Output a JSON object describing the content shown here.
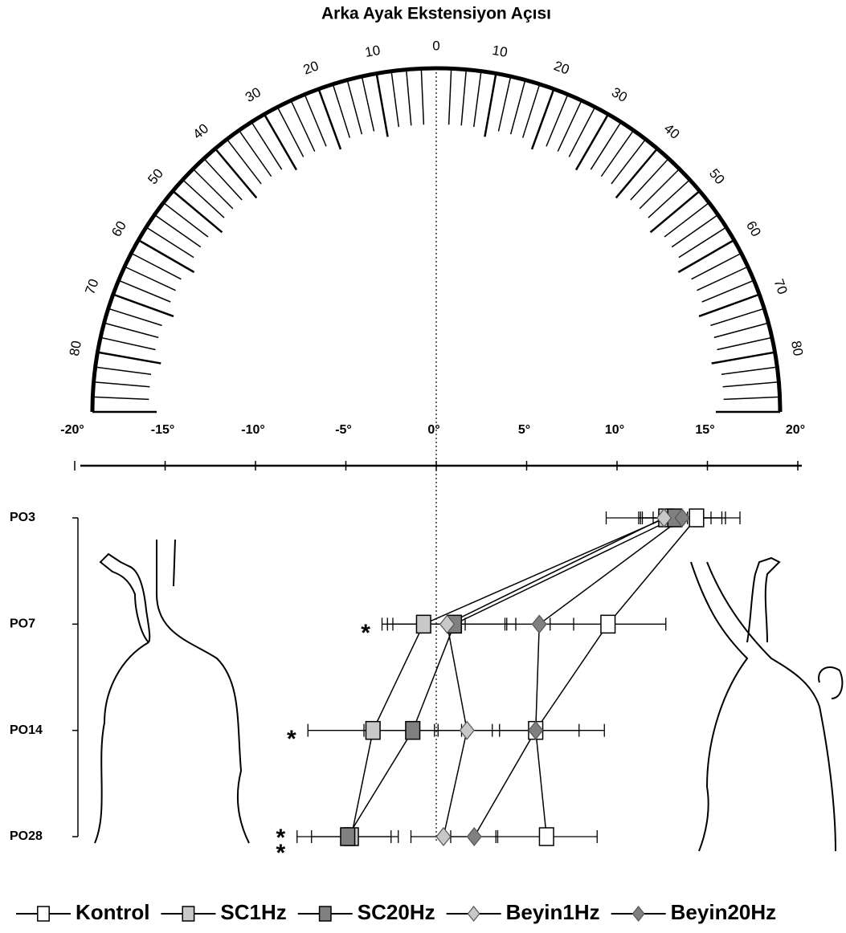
{
  "chart_data": {
    "type": "dotplot",
    "title": "Arka Ayak Ekstensiyon Açısı",
    "categories": [
      "PO3",
      "PO7",
      "PO14",
      "PO28"
    ],
    "xlim": [
      -20,
      20
    ],
    "xticks": [
      {
        "value": -20,
        "label": "-20°"
      },
      {
        "value": -15,
        "label": "-15°"
      },
      {
        "value": -10,
        "label": "-10°"
      },
      {
        "value": -5,
        "label": "-5°"
      },
      {
        "value": 0,
        "label": "0°"
      },
      {
        "value": 5,
        "label": "5°"
      },
      {
        "value": 10,
        "label": "10°"
      },
      {
        "value": 15,
        "label": "15°"
      },
      {
        "value": 20,
        "label": "20°"
      }
    ],
    "protractor_labels": [
      0,
      10,
      20,
      30,
      40,
      50,
      60,
      70,
      80
    ],
    "significance": [
      null,
      "*",
      "*",
      "**"
    ],
    "series": [
      {
        "name": "Kontrol",
        "marker": "square",
        "color": "#ffffff",
        "values": [
          14.4,
          9.5,
          5.5,
          6.1
        ],
        "errors": [
          2.4,
          3.2,
          3.8,
          2.8
        ]
      },
      {
        "name": "SC1Hz",
        "marker": "square",
        "color": "#c8c8c8",
        "values": [
          12.7,
          -0.7,
          -3.5,
          -4.7
        ],
        "errors": [
          3.3,
          2.3,
          3.6,
          2.2
        ]
      },
      {
        "name": "SC20Hz",
        "marker": "square",
        "color": "#808080",
        "values": [
          13.2,
          1.0,
          -1.3,
          -4.9
        ],
        "errors": [
          2.0,
          3.4,
          2.7,
          2.8
        ]
      },
      {
        "name": "Beyin1Hz",
        "marker": "diamond",
        "color": "#c8c8c8",
        "values": [
          12.6,
          0.6,
          1.7,
          0.4
        ],
        "errors": [
          1.3,
          3.3,
          1.8,
          1.8
        ]
      },
      {
        "name": "Beyin20Hz",
        "marker": "diamond",
        "color": "#808080",
        "values": [
          13.6,
          5.7,
          5.5,
          2.1
        ],
        "errors": [
          2.2,
          1.9,
          2.4,
          1.3
        ]
      }
    ]
  }
}
